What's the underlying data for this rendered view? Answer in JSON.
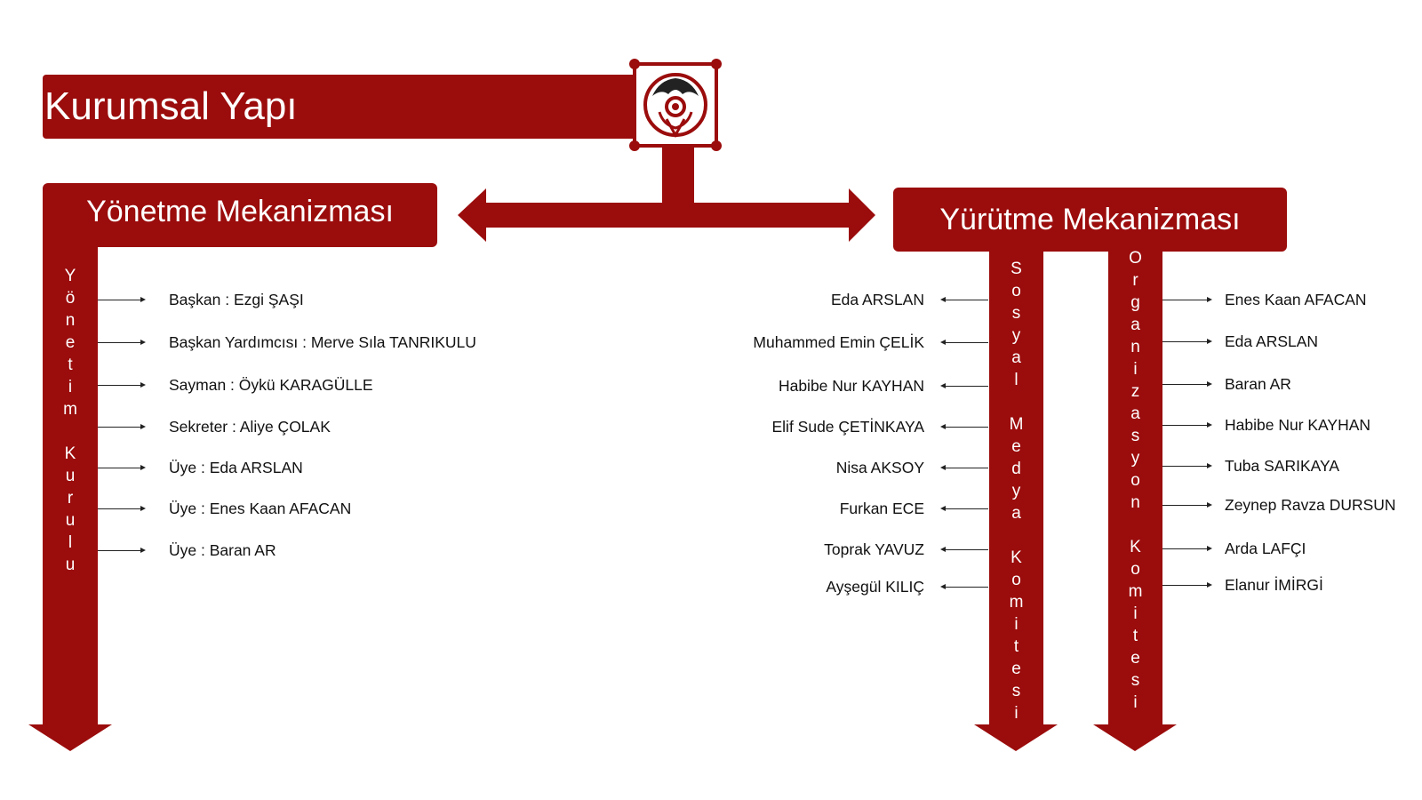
{
  "title": "Kurumsal Yapı",
  "logo": {
    "icon": "club-emblem-icon"
  },
  "colors": {
    "accent": "#9b0c0c",
    "text": "#111111",
    "background": "#ffffff"
  },
  "left": {
    "header": "Yönetme Mekanizması",
    "column_label": "Yönetim Kurulu",
    "members": [
      "Başkan : Ezgi ŞAŞI",
      "Başkan Yardımcısı : Merve Sıla TANRIKULU",
      "Sayman : Öykü KARAGÜLLE",
      "Sekreter : Aliye ÇOLAK",
      "Üye : Eda ARSLAN",
      "Üye : Enes Kaan AFACAN",
      "Üye : Baran AR"
    ]
  },
  "right": {
    "header": "Yürütme Mekanizması",
    "social": {
      "column_label": "Sosyal Medya Komitesi",
      "members": [
        "Eda ARSLAN",
        "Muhammed Emin ÇELİK",
        "Habibe Nur KAYHAN",
        "Elif Sude ÇETİNKAYA",
        "Nisa AKSOY",
        "Furkan ECE",
        "Toprak YAVUZ",
        "Ayşegül KILIÇ"
      ]
    },
    "organization": {
      "column_label": "Organizasyon Komitesi",
      "members": [
        "Enes Kaan AFACAN",
        "Eda ARSLAN",
        "Baran AR",
        "Habibe Nur KAYHAN",
        "Tuba SARIKAYA",
        "Zeynep Ravza DURSUN",
        "Arda LAFÇI",
        "Elanur İMİRGİ"
      ]
    }
  }
}
